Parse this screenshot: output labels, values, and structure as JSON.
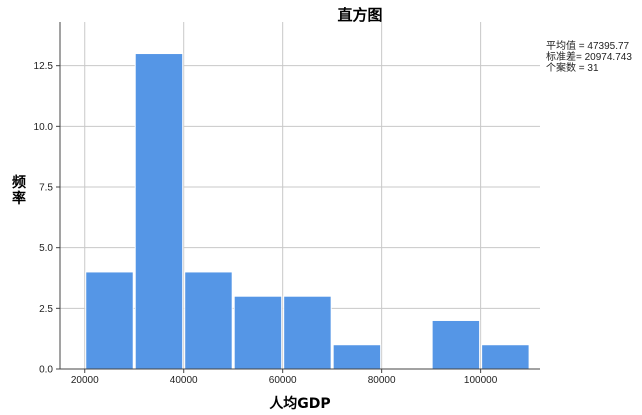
{
  "chart_data": {
    "type": "bar",
    "title": "直方图",
    "xlabel": "人均GDP",
    "ylabel": "频率",
    "bin_edges": [
      20000,
      30000,
      40000,
      50000,
      60000,
      70000,
      80000,
      90000,
      100000,
      110000
    ],
    "values": [
      4,
      13,
      4,
      3,
      3,
      1,
      0,
      2,
      1
    ],
    "xlim": [
      15000,
      112000
    ],
    "ylim": [
      0,
      14.3
    ],
    "x_ticks": [
      20000,
      40000,
      60000,
      80000,
      100000
    ],
    "y_ticks": [
      "0.0",
      "2.5",
      "5.0",
      "7.5",
      "10.0",
      "12.5"
    ],
    "grid": true,
    "bar_color": "#5596e6",
    "stats": [
      "平均值 = 47395.77",
      "标准差= 20974.743",
      "个案数 = 31"
    ]
  }
}
